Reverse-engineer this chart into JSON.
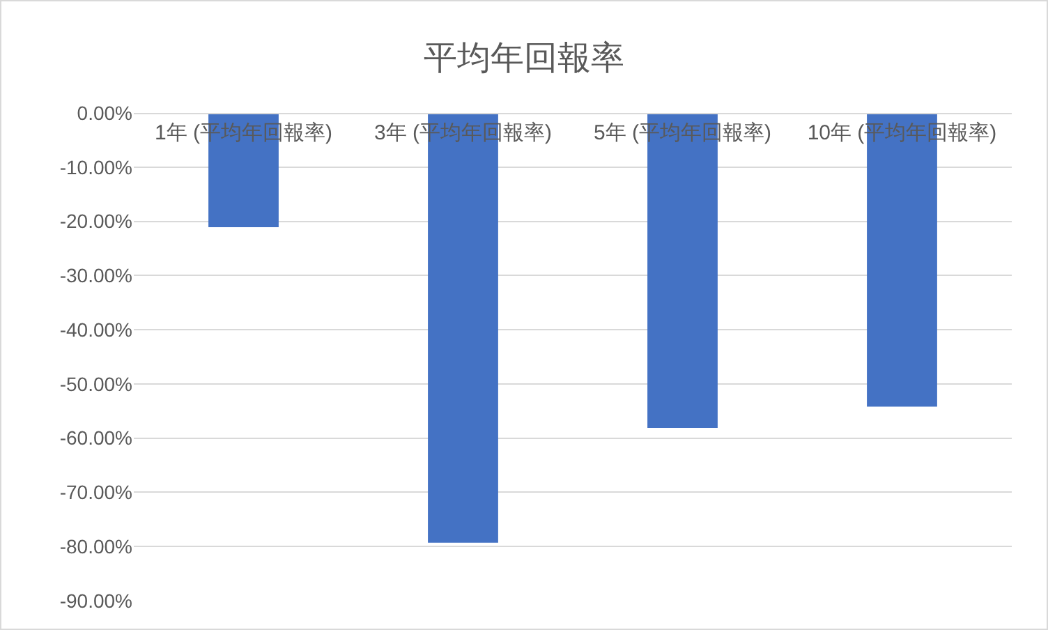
{
  "chart_data": {
    "type": "bar",
    "title": "平均年回報率",
    "categories": [
      "1年 (平均年回報率)",
      "3年 (平均年回報率)",
      "5年 (平均年回報率)",
      "10年 (平均年回報率)"
    ],
    "values": [
      -21.1,
      -79.3,
      -58.1,
      -54.2
    ],
    "color": "#4472c4",
    "ylim": [
      -90,
      0
    ],
    "yticks": [
      {
        "value": 0,
        "label": "0.00%"
      },
      {
        "value": -10,
        "label": "-10.00%"
      },
      {
        "value": -20,
        "label": "-20.00%"
      },
      {
        "value": -30,
        "label": "-30.00%"
      },
      {
        "value": -40,
        "label": "-40.00%"
      },
      {
        "value": -50,
        "label": "-50.00%"
      },
      {
        "value": -60,
        "label": "-60.00%"
      },
      {
        "value": -70,
        "label": "-70.00%"
      },
      {
        "value": -80,
        "label": "-80.00%"
      },
      {
        "value": -90,
        "label": "-90.00%"
      }
    ],
    "grid": "y"
  }
}
